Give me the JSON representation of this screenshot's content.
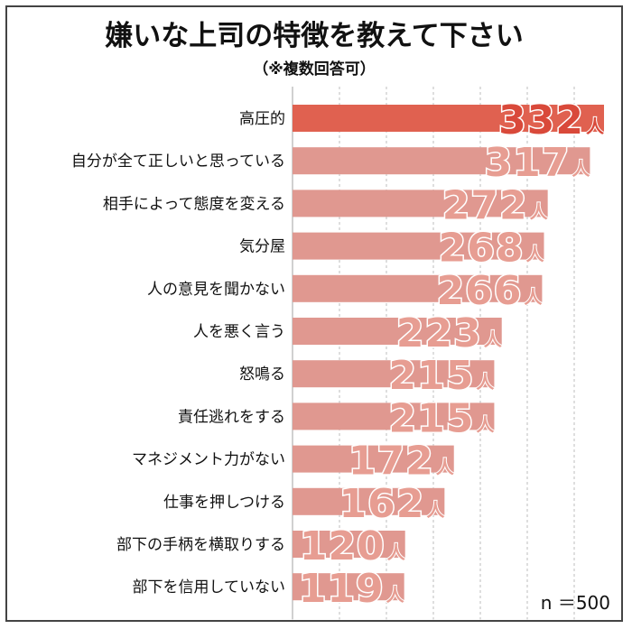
{
  "chart_data": {
    "type": "bar",
    "orientation": "horizontal",
    "title": "嫌いな上司の特徴を教えて下さい",
    "subtitle": "（※複数回答可）",
    "categories": [
      "高圧的",
      "自分が全て正しいと思っている",
      "相手によって態度を変える",
      "気分屋",
      "人の意見を聞かない",
      "人を悪く言う",
      "怒鳴る",
      "責任逃れをする",
      "マネジメント力がない",
      "仕事を押しつける",
      "部下の手柄を横取りする",
      "部下を信用していない"
    ],
    "values": [
      332,
      317,
      272,
      268,
      266,
      223,
      215,
      215,
      172,
      162,
      120,
      119
    ],
    "value_labels": [
      "332",
      "317",
      "272",
      "268",
      "266",
      "223",
      "215",
      "215",
      "172",
      "162",
      "120",
      "119"
    ],
    "unit": "人",
    "xlim": [
      0,
      332
    ],
    "grid": true,
    "note": "n ＝500",
    "colors": {
      "top_bar": "#e06150",
      "bar": "#e09890",
      "top_value": "#d9493a",
      "value": "#e79d92",
      "grid": "#bdbdbd"
    }
  }
}
